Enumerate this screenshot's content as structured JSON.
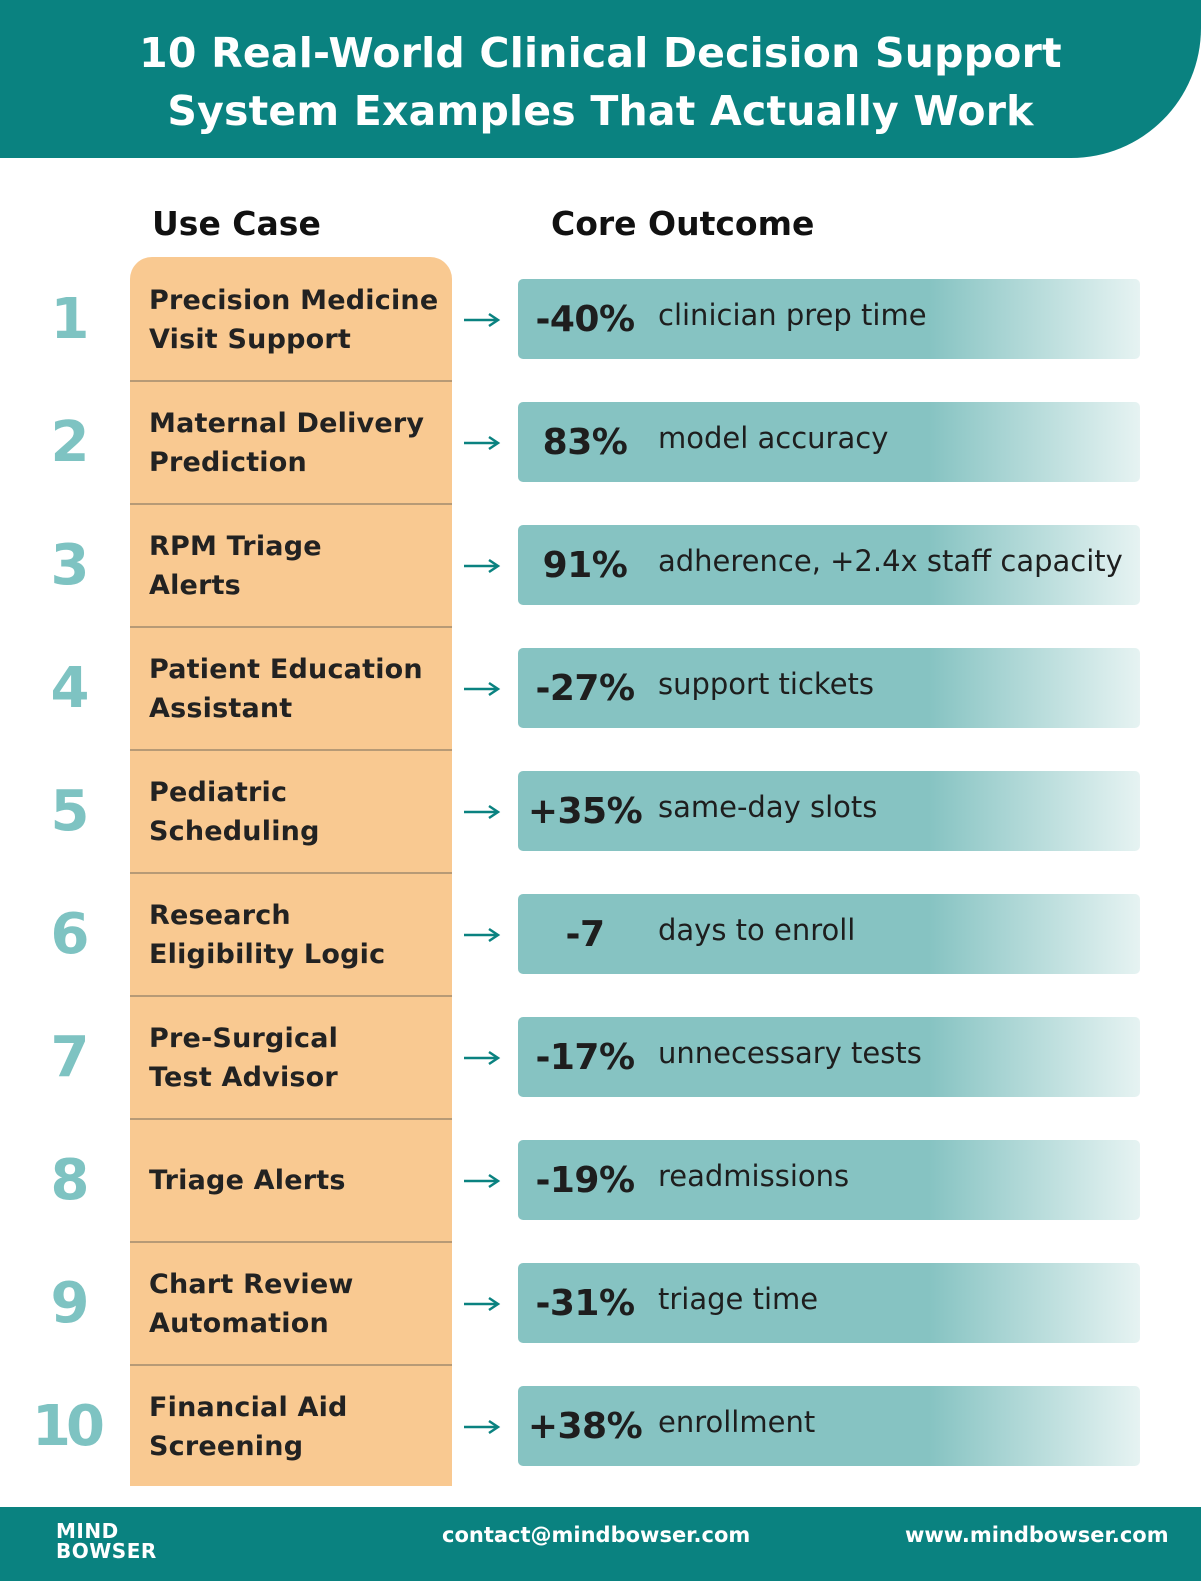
{
  "header": {
    "title_line1": "10 Real-World Clinical Decision Support",
    "title_line2": "System Examples That Actually Work"
  },
  "columns": {
    "use_case": "Use Case",
    "core_outcome": "Core Outcome"
  },
  "rows": [
    {
      "num": "1",
      "use_line1": "Precision Medicine",
      "use_line2": "Visit Support",
      "stat": "-40%",
      "desc": "clinician prep time"
    },
    {
      "num": "2",
      "use_line1": "Maternal Delivery",
      "use_line2": "Prediction",
      "stat": "83%",
      "desc": "model accuracy"
    },
    {
      "num": "3",
      "use_line1": "RPM Triage",
      "use_line2": "Alerts",
      "stat": "91%",
      "desc": "adherence, +2.4x staff capacity"
    },
    {
      "num": "4",
      "use_line1": "Patient Education",
      "use_line2": "Assistant",
      "stat": "-27%",
      "desc": "support tickets"
    },
    {
      "num": "5",
      "use_line1": "Pediatric",
      "use_line2": "Scheduling",
      "stat": "+35%",
      "desc": "same-day slots"
    },
    {
      "num": "6",
      "use_line1": "Research",
      "use_line2": "Eligibility Logic",
      "stat": "-7",
      "desc": "days to enroll"
    },
    {
      "num": "7",
      "use_line1": "Pre-Surgical",
      "use_line2": "Test Advisor",
      "stat": "-17%",
      "desc": "unnecessary tests"
    },
    {
      "num": "8",
      "use_line1": "Triage Alerts",
      "use_line2": "",
      "stat": "-19%",
      "desc": "readmissions"
    },
    {
      "num": "9",
      "use_line1": "Chart Review",
      "use_line2": "Automation",
      "stat": "-31%",
      "desc": "triage time"
    },
    {
      "num": "10",
      "use_line1": "Financial Aid",
      "use_line2": "Screening",
      "stat": "+38%",
      "desc": "enrollment"
    }
  ],
  "footer": {
    "logo_line1": "MIND",
    "logo_line2": "BOWSER",
    "contact": "contact@mindbowser.com",
    "website": "www.mindbowser.com"
  },
  "colors": {
    "teal": "#0a8280",
    "light_teal": "#86c3c2",
    "number_teal": "#7ec3c2",
    "peach": "#f9c991"
  }
}
